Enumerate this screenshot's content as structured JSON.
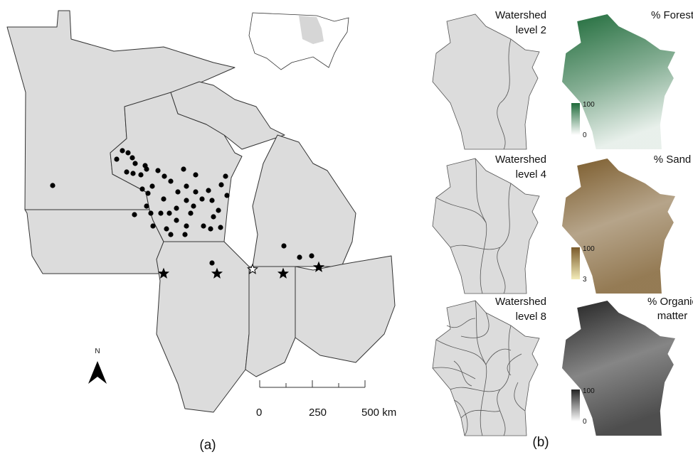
{
  "panel_a": {
    "north_label": "N",
    "scale_bar": [
      0,
      250,
      {
        "value": 500,
        "label": "500 km"
      }
    ],
    "caption": "(a)"
  },
  "panel_b": {
    "caption": "(b)",
    "watersheds": [
      {
        "lines": [
          "Watershed",
          "level 2"
        ]
      },
      {
        "lines": [
          "Watershed",
          "level 4"
        ]
      },
      {
        "lines": [
          "Watershed",
          "level 8"
        ]
      }
    ],
    "layers": [
      {
        "lines": [
          "% Forest"
        ],
        "legend_max": 100,
        "legend_min": 0,
        "color": "#1f6b3a"
      },
      {
        "lines": [
          "% Sand"
        ],
        "legend_max": 100,
        "legend_min": 3,
        "color": "#7a5a2a"
      },
      {
        "lines": [
          "% Organic",
          "matter"
        ],
        "legend_max": 100,
        "legend_min": 0,
        "color": "#222222"
      }
    ]
  }
}
